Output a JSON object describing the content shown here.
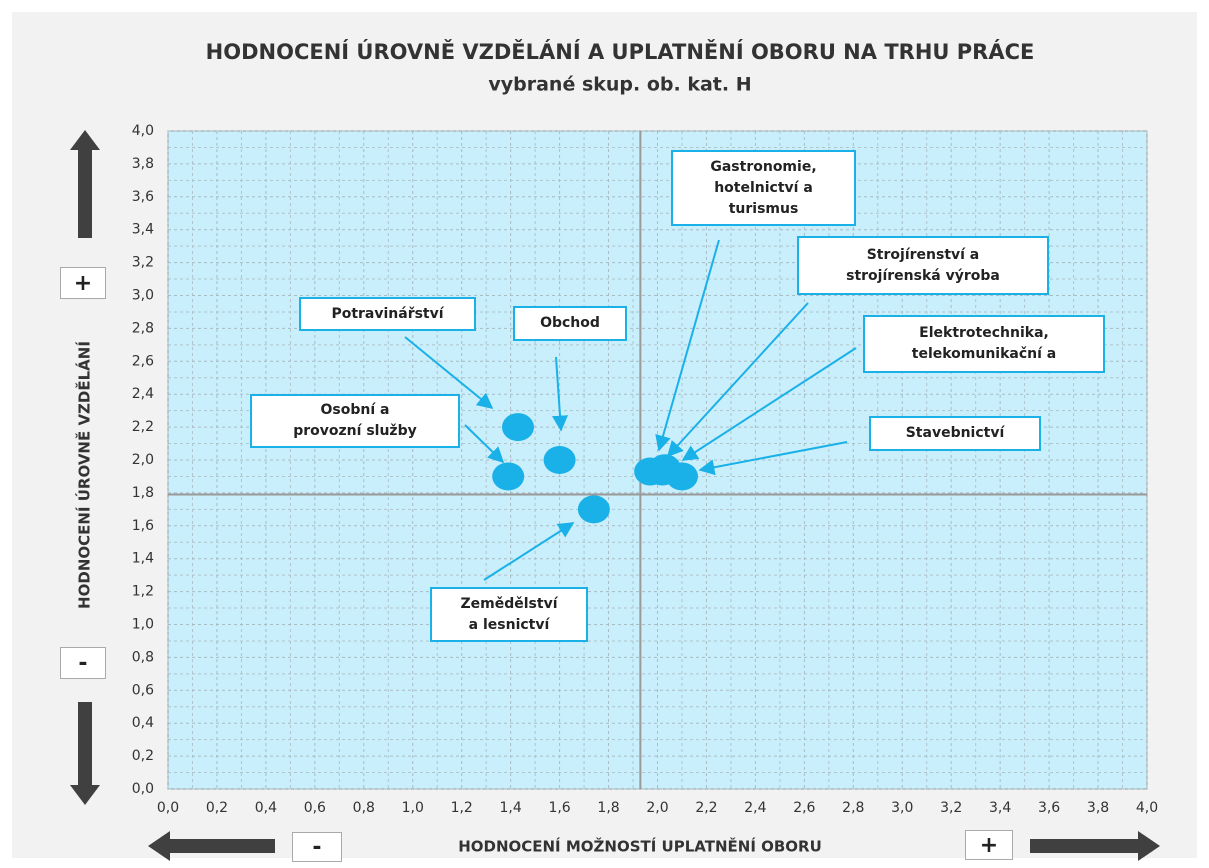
{
  "chart_data": {
    "type": "scatter",
    "title": "HODNOCENÍ ÚROVNĚ VZDĚLÁNÍ A UPLATNĚNÍ OBORU NA TRHU PRÁCE",
    "subtitle": "vybrané skup. ob. kat. H",
    "x_label": "HODNOCENÍ MOŽNOSTÍ UPLATNĚNÍ OBORU",
    "y_label": "HODNOCENÍ ÚROVNĚ VZDĚLÁNÍ",
    "y_plus": "+",
    "y_minus": "-",
    "x_minus": "-",
    "x_plus": "+",
    "color": "#1ab0e8",
    "labels": [
      "Osobní a\nprovozní služby",
      "Potravinářství",
      "Obchod",
      "Zemědělství\na lesnictví",
      "Gastronomie,\nhotelnictví a\nturismus",
      "Strojírenství a\nstrojírenská výroba",
      "Elektrotechnika,\ntelekomunikační a",
      "Stavebnictví"
    ],
    "x": [
      1.39,
      1.43,
      1.6,
      1.74,
      1.97,
      2.02,
      2.03,
      2.1
    ],
    "values": [
      1.9,
      2.2,
      2.0,
      1.7,
      1.93,
      1.93,
      1.95,
      1.9
    ],
    "x_reference": 1.93,
    "y_reference": 1.79,
    "xlim": [
      0,
      4
    ],
    "ylim": [
      0,
      4
    ],
    "xticks": [
      {
        "value": 0,
        "label": "0,0"
      },
      {
        "value": 0.2,
        "label": "0,2"
      },
      {
        "value": 0.4,
        "label": "0,4"
      },
      {
        "value": 0.6,
        "label": "0,6"
      },
      {
        "value": 0.8,
        "label": "0,8"
      },
      {
        "value": 1,
        "label": "1,0"
      },
      {
        "value": 1.2,
        "label": "1,2"
      },
      {
        "value": 1.4,
        "label": "1,4"
      },
      {
        "value": 1.6,
        "label": "1,6"
      },
      {
        "value": 1.8,
        "label": "1,8"
      },
      {
        "value": 2,
        "label": "2,0"
      },
      {
        "value": 2.2,
        "label": "2,2"
      },
      {
        "value": 2.4,
        "label": "2,4"
      },
      {
        "value": 2.6,
        "label": "2,6"
      },
      {
        "value": 2.8,
        "label": "2,8"
      },
      {
        "value": 3,
        "label": "3,0"
      },
      {
        "value": 3.2,
        "label": "3,2"
      },
      {
        "value": 3.4,
        "label": "3,4"
      },
      {
        "value": 3.6,
        "label": "3,6"
      },
      {
        "value": 3.8,
        "label": "3,8"
      },
      {
        "value": 4,
        "label": "4,0"
      }
    ],
    "yticks": [
      {
        "value": 0,
        "label": "0,0"
      },
      {
        "value": 0.2,
        "label": "0,2"
      },
      {
        "value": 0.4,
        "label": "0,4"
      },
      {
        "value": 0.6,
        "label": "0,6"
      },
      {
        "value": 0.8,
        "label": "0,8"
      },
      {
        "value": 1,
        "label": "1,0"
      },
      {
        "value": 1.2,
        "label": "1,2"
      },
      {
        "value": 1.4,
        "label": "1,4"
      },
      {
        "value": 1.6,
        "label": "1,6"
      },
      {
        "value": 1.8,
        "label": "1,8"
      },
      {
        "value": 2,
        "label": "2,0"
      },
      {
        "value": 2.2,
        "label": "2,2"
      },
      {
        "value": 2.4,
        "label": "2,4"
      },
      {
        "value": 2.6,
        "label": "2,6"
      },
      {
        "value": 2.8,
        "label": "2,8"
      },
      {
        "value": 3,
        "label": "3,0"
      },
      {
        "value": 3.2,
        "label": "3,2"
      },
      {
        "value": 3.4,
        "label": "3,4"
      },
      {
        "value": 3.6,
        "label": "3,6"
      },
      {
        "value": 3.8,
        "label": "3,8"
      },
      {
        "value": 4,
        "label": "4,0"
      }
    ],
    "grid": true
  }
}
